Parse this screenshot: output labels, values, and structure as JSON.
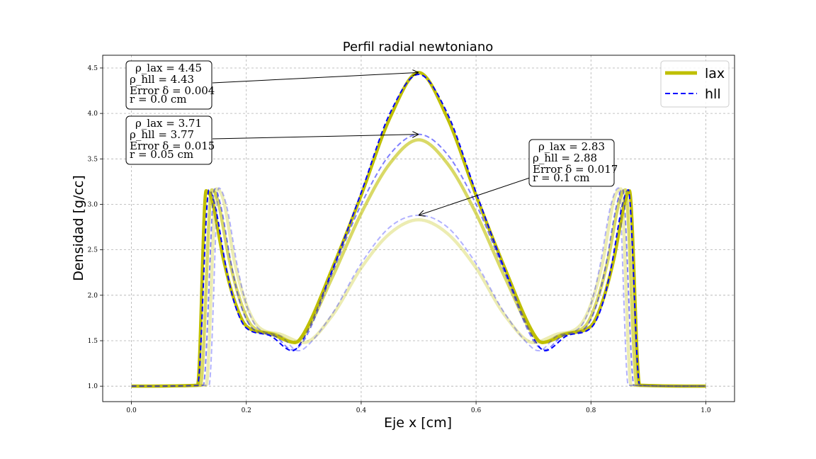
{
  "chart_data": {
    "type": "line",
    "title": "Perfil radial newtoniano",
    "xlabel": "Eje x [cm]",
    "ylabel": "Densidad [g/cc]",
    "xlim": [
      -0.05,
      1.05
    ],
    "ylim": [
      0.83,
      4.64
    ],
    "xticks": [
      "0.0",
      "0.2",
      "0.4",
      "0.6",
      "0.8",
      "1.0"
    ],
    "yticks": [
      "1.0",
      "1.5",
      "2.0",
      "2.5",
      "3.0",
      "3.5",
      "4.0",
      "4.5"
    ],
    "grid": true,
    "legend": {
      "position": "top-right",
      "entries": [
        {
          "label": "lax",
          "color": "#bfbf00",
          "style": "solid"
        },
        {
          "label": "hll",
          "color": "#0000ff",
          "style": "dashed"
        }
      ]
    },
    "series": [
      {
        "name": "lax",
        "scheme": "lax",
        "r": "0.0",
        "opacity": 1.0,
        "x0": 0.133,
        "s": 0.004,
        "x": [
          0.0,
          0.115,
          0.13,
          0.14,
          0.16,
          0.18,
          0.2,
          0.24,
          0.285,
          0.3,
          0.35,
          0.4,
          0.45,
          0.5,
          0.55,
          0.6,
          0.65,
          0.7,
          0.715,
          0.76,
          0.8,
          0.82,
          0.84,
          0.86,
          0.867,
          0.885,
          1.0
        ],
        "y": [
          1.0,
          1.01,
          3.15,
          3.05,
          2.4,
          1.93,
          1.66,
          1.58,
          1.48,
          1.58,
          2.3,
          3.1,
          3.95,
          4.45,
          3.95,
          3.1,
          2.3,
          1.58,
          1.48,
          1.58,
          1.66,
          1.93,
          2.4,
          3.05,
          3.15,
          1.01,
          1.0
        ]
      },
      {
        "name": "hll",
        "scheme": "hll",
        "r": "0.0",
        "opacity": 1.0,
        "x0": 0.135,
        "s": 0.004,
        "x": [
          0.0,
          0.115,
          0.135,
          0.145,
          0.165,
          0.18,
          0.2,
          0.24,
          0.28,
          0.3,
          0.35,
          0.4,
          0.45,
          0.5,
          0.55,
          0.6,
          0.65,
          0.7,
          0.72,
          0.76,
          0.8,
          0.82,
          0.835,
          0.855,
          0.865,
          0.885,
          1.0
        ],
        "y": [
          1.0,
          1.01,
          3.16,
          3.0,
          2.3,
          1.9,
          1.64,
          1.56,
          1.39,
          1.53,
          2.28,
          3.13,
          4.0,
          4.43,
          4.0,
          3.13,
          2.28,
          1.53,
          1.39,
          1.56,
          1.64,
          1.9,
          2.3,
          3.0,
          3.16,
          1.01,
          1.0
        ]
      },
      {
        "name": "lax",
        "scheme": "lax",
        "r": "0.05",
        "opacity": 0.6,
        "x0": 0.14,
        "s": 0.004,
        "x": [
          0.0,
          0.12,
          0.14,
          0.15,
          0.17,
          0.19,
          0.21,
          0.25,
          0.285,
          0.3,
          0.35,
          0.4,
          0.45,
          0.5,
          0.55,
          0.6,
          0.65,
          0.7,
          0.715,
          0.75,
          0.79,
          0.81,
          0.83,
          0.85,
          0.86,
          0.88,
          1.0
        ],
        "y": [
          1.0,
          1.01,
          3.16,
          3.05,
          2.4,
          1.93,
          1.66,
          1.57,
          1.48,
          1.56,
          2.2,
          2.9,
          3.45,
          3.71,
          3.45,
          2.9,
          2.2,
          1.56,
          1.48,
          1.57,
          1.66,
          1.93,
          2.4,
          3.05,
          3.16,
          1.01,
          1.0
        ]
      },
      {
        "name": "hll",
        "scheme": "hll",
        "r": "0.05",
        "opacity": 0.5,
        "x0": 0.145,
        "s": 0.004,
        "x": [
          0.0,
          0.125,
          0.145,
          0.155,
          0.175,
          0.19,
          0.21,
          0.25,
          0.28,
          0.3,
          0.35,
          0.4,
          0.45,
          0.5,
          0.55,
          0.6,
          0.65,
          0.7,
          0.72,
          0.75,
          0.79,
          0.81,
          0.825,
          0.845,
          0.855,
          0.875,
          1.0
        ],
        "y": [
          1.0,
          1.01,
          3.17,
          3.0,
          2.3,
          1.9,
          1.64,
          1.55,
          1.4,
          1.5,
          2.25,
          3.0,
          3.55,
          3.77,
          3.55,
          3.0,
          2.25,
          1.5,
          1.4,
          1.55,
          1.64,
          1.9,
          2.3,
          3.0,
          3.17,
          1.01,
          1.0
        ]
      },
      {
        "name": "lax",
        "scheme": "lax",
        "r": "0.1",
        "opacity": 0.3,
        "x0": 0.148,
        "s": 0.004,
        "x": [
          0.0,
          0.13,
          0.148,
          0.16,
          0.18,
          0.2,
          0.22,
          0.26,
          0.3,
          0.35,
          0.4,
          0.45,
          0.5,
          0.55,
          0.6,
          0.65,
          0.7,
          0.74,
          0.78,
          0.8,
          0.82,
          0.84,
          0.852,
          0.87,
          1.0
        ],
        "y": [
          1.0,
          1.01,
          3.17,
          3.05,
          2.35,
          1.9,
          1.66,
          1.57,
          1.48,
          1.78,
          2.3,
          2.68,
          2.83,
          2.68,
          2.3,
          1.78,
          1.48,
          1.57,
          1.66,
          1.9,
          2.35,
          3.05,
          3.17,
          1.01,
          1.0
        ]
      },
      {
        "name": "hll",
        "scheme": "hll",
        "r": "0.1",
        "opacity": 0.3,
        "x0": 0.152,
        "s": 0.004,
        "x": [
          0.0,
          0.135,
          0.152,
          0.165,
          0.185,
          0.2,
          0.22,
          0.26,
          0.29,
          0.3,
          0.35,
          0.4,
          0.45,
          0.5,
          0.55,
          0.6,
          0.65,
          0.7,
          0.71,
          0.74,
          0.78,
          0.8,
          0.815,
          0.835,
          0.848,
          0.865,
          1.0
        ],
        "y": [
          1.0,
          1.01,
          3.18,
          3.0,
          2.3,
          1.9,
          1.64,
          1.55,
          1.39,
          1.41,
          1.8,
          2.35,
          2.75,
          2.88,
          2.75,
          2.35,
          1.8,
          1.41,
          1.39,
          1.55,
          1.64,
          1.9,
          2.3,
          3.0,
          3.18,
          1.01,
          1.0
        ]
      }
    ],
    "annotations": [
      {
        "lines": [
          "ρ_lax = 4.45",
          "ρ_hll = 4.43",
          "Error δ = 0.004",
          "r = 0.0 cm"
        ],
        "target": [
          0.5,
          4.45
        ]
      },
      {
        "lines": [
          "ρ_lax = 3.71",
          "ρ_hll = 3.77",
          "Error δ = 0.015",
          "r = 0.05 cm"
        ],
        "target": [
          0.5,
          3.77
        ]
      },
      {
        "lines": [
          "ρ_lax = 2.83",
          "ρ_hll = 2.88",
          "Error δ = 0.017",
          "r = 0.1 cm"
        ],
        "target": [
          0.5,
          2.88
        ]
      }
    ]
  }
}
